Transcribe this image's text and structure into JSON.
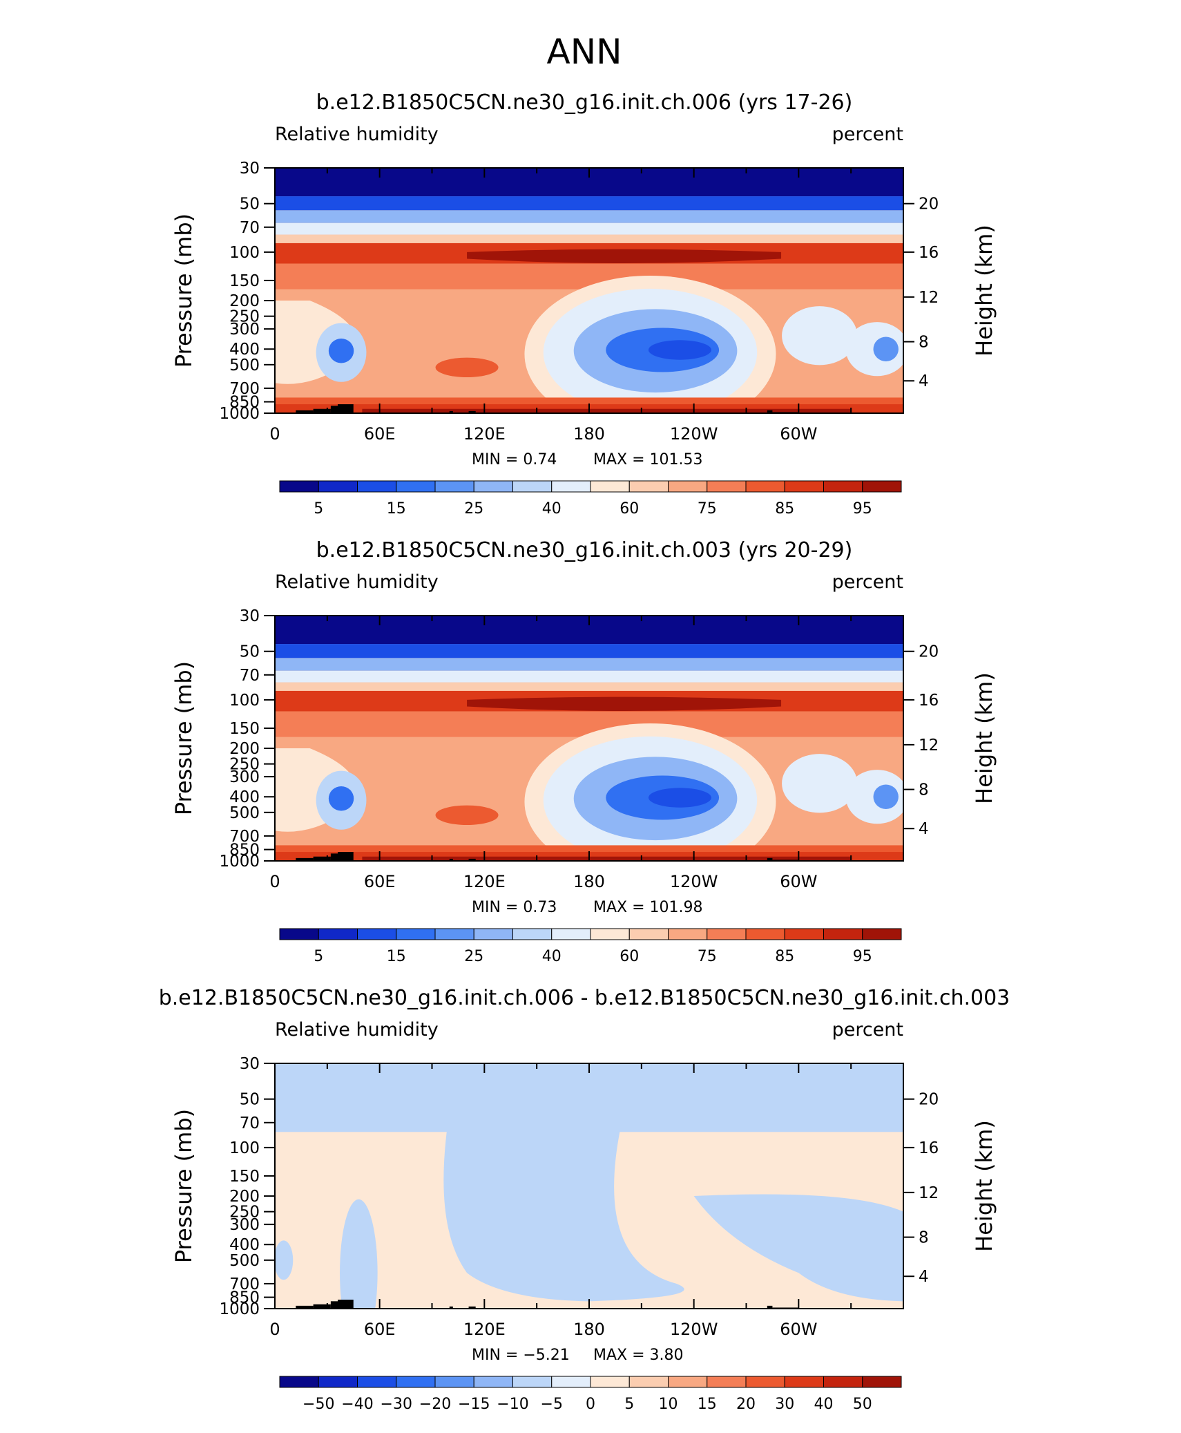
{
  "figure": {
    "title": "ANN"
  },
  "colorbar_labels_abs": [
    "5",
    "15",
    "25",
    "40",
    "60",
    "75",
    "85",
    "95"
  ],
  "colorbar_labels_diff": [
    "−50",
    "−40",
    "−30",
    "−20",
    "−15",
    "−10",
    "−5",
    "0",
    "5",
    "10",
    "15",
    "20",
    "30",
    "40",
    "50"
  ],
  "colors": {
    "abs": [
      "#08088a",
      "#1028c8",
      "#1b4ee6",
      "#3070f2",
      "#5c94f4",
      "#8fb6f6",
      "#bcd6f8",
      "#e3eefb",
      "#fde8d6",
      "#fbcdb0",
      "#f8a882",
      "#f47e56",
      "#ec5a30",
      "#dd3a18",
      "#c4240e",
      "#a01408",
      "#780606"
    ],
    "land": "#000000"
  },
  "chart_data": [
    {
      "type": "heatmap",
      "title": "b.e12.B1850C5CN.ne30_g16.init.ch.006 (yrs 17-26)",
      "left_label": "Relative humidity",
      "right_label": "percent",
      "xlabels": [
        "0",
        "60E",
        "120E",
        "180",
        "120W",
        "60W"
      ],
      "xvalues": [
        0,
        60,
        120,
        180,
        240,
        300
      ],
      "xlim": [
        0,
        360
      ],
      "ylabel": "Pressure (mb)",
      "ylabels": [
        "30",
        "50",
        "70",
        "100",
        "150",
        "200",
        "250",
        "300",
        "400",
        "500",
        "700",
        "850",
        "1000"
      ],
      "yvalues": [
        30,
        50,
        70,
        100,
        150,
        200,
        250,
        300,
        400,
        500,
        700,
        850,
        1000
      ],
      "ylim": [
        1000,
        30
      ],
      "yscale": "log",
      "y2label": "Height (km)",
      "y2labels": [
        "20",
        "16",
        "12",
        "8",
        "4"
      ],
      "y2values_mb": [
        50,
        100,
        190,
        360,
        630
      ],
      "min_text": "MIN =    0.74",
      "max_text": "MAX =  101.53",
      "colorbar": "abs"
    },
    {
      "type": "heatmap",
      "title": "b.e12.B1850C5CN.ne30_g16.init.ch.003 (yrs 20-29)",
      "left_label": "Relative humidity",
      "right_label": "percent",
      "xlabels": [
        "0",
        "60E",
        "120E",
        "180",
        "120W",
        "60W"
      ],
      "xvalues": [
        0,
        60,
        120,
        180,
        240,
        300
      ],
      "xlim": [
        0,
        360
      ],
      "ylabel": "Pressure (mb)",
      "ylabels": [
        "30",
        "50",
        "70",
        "100",
        "150",
        "200",
        "250",
        "300",
        "400",
        "500",
        "700",
        "850",
        "1000"
      ],
      "yvalues": [
        30,
        50,
        70,
        100,
        150,
        200,
        250,
        300,
        400,
        500,
        700,
        850,
        1000
      ],
      "ylim": [
        1000,
        30
      ],
      "yscale": "log",
      "y2label": "Height (km)",
      "y2labels": [
        "20",
        "16",
        "12",
        "8",
        "4"
      ],
      "y2values_mb": [
        50,
        100,
        190,
        360,
        630
      ],
      "min_text": "MIN =    0.73",
      "max_text": "MAX =  101.98",
      "colorbar": "abs"
    },
    {
      "type": "heatmap",
      "title": "b.e12.B1850C5CN.ne30_g16.init.ch.006 - b.e12.B1850C5CN.ne30_g16.init.ch.003",
      "left_label": "Relative humidity",
      "right_label": "percent",
      "xlabels": [
        "0",
        "60E",
        "120E",
        "180",
        "120W",
        "60W"
      ],
      "xvalues": [
        0,
        60,
        120,
        180,
        240,
        300
      ],
      "xlim": [
        0,
        360
      ],
      "ylabel": "Pressure (mb)",
      "ylabels": [
        "30",
        "50",
        "70",
        "100",
        "150",
        "200",
        "250",
        "300",
        "400",
        "500",
        "700",
        "850",
        "1000"
      ],
      "yvalues": [
        30,
        50,
        70,
        100,
        150,
        200,
        250,
        300,
        400,
        500,
        700,
        850,
        1000
      ],
      "ylim": [
        1000,
        30
      ],
      "yscale": "log",
      "y2label": "Height (km)",
      "y2labels": [
        "20",
        "16",
        "12",
        "8",
        "4"
      ],
      "y2values_mb": [
        50,
        100,
        190,
        360,
        630
      ],
      "min_text": "MIN =   −5.21",
      "max_text": "MAX =     3.80",
      "colorbar": "diff"
    }
  ]
}
